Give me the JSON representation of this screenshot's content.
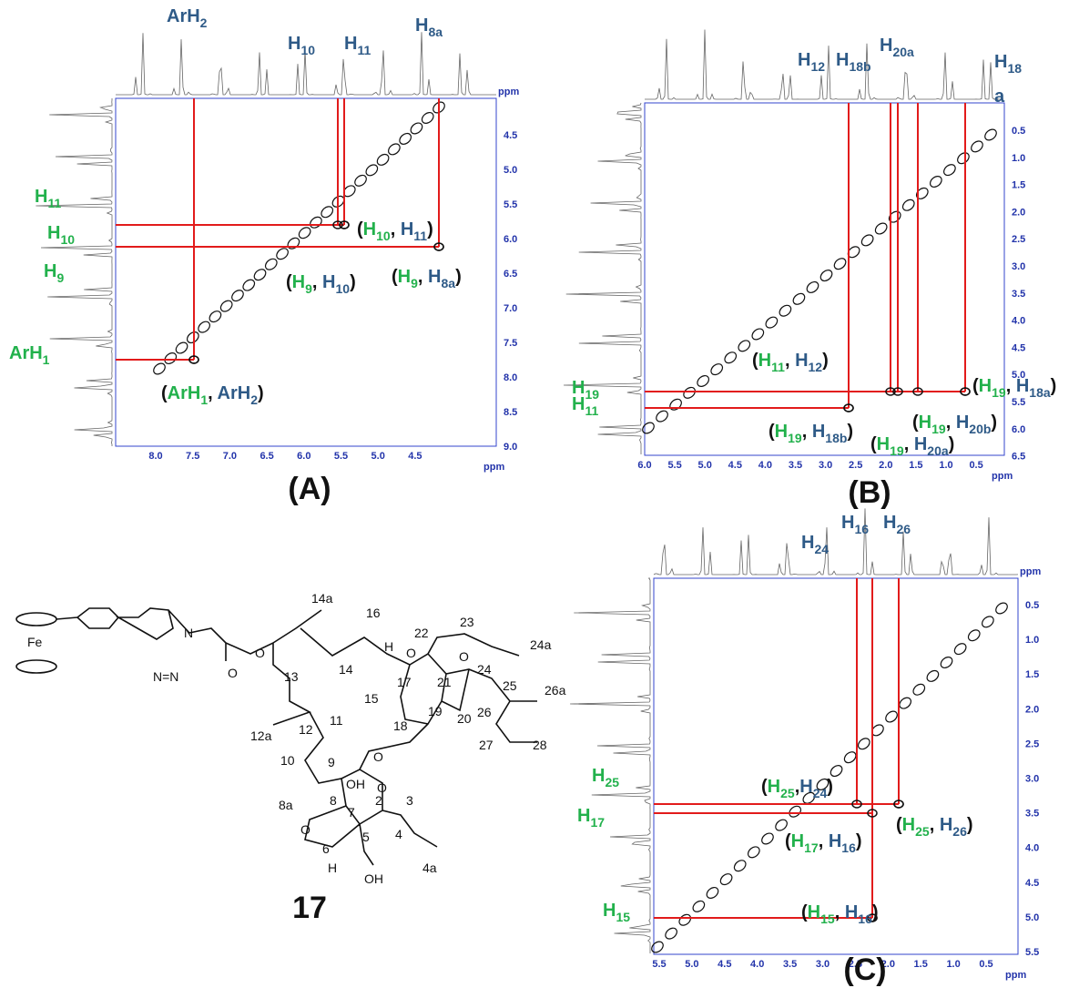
{
  "figure": {
    "compound": "17",
    "panels": [
      {
        "label": "(A)",
        "x_ticks": [
          "8.0",
          "7.5",
          "7.0",
          "6.5",
          "6.0",
          "5.5",
          "5.0",
          "4.5"
        ],
        "y_ticks": [
          "4.5",
          "5.0",
          "5.5",
          "6.0",
          "6.5",
          "7.0",
          "7.5",
          "8.0",
          "8.5",
          "9.0"
        ],
        "x_unit": "ppm",
        "y_unit": "ppm",
        "peak_labels": [
          [
            {
              "t": "ArH",
              "s": "2",
              "color": "#2e5a87"
            }
          ],
          [
            {
              "t": "H",
              "s": "10",
              "color": "#2e5a87"
            }
          ],
          [
            {
              "t": "H",
              "s": "11",
              "color": "#2e5a87"
            }
          ],
          [
            {
              "t": "H",
              "s": "8a",
              "color": "#2e5a87"
            }
          ],
          [
            {
              "t": "H",
              "s": "11",
              "color": "#22b14c"
            }
          ],
          [
            {
              "t": "H",
              "s": "10",
              "color": "#22b14c"
            }
          ],
          [
            {
              "t": "H",
              "s": "9",
              "color": "#22b14c"
            }
          ],
          [
            {
              "t": "ArH",
              "s": "1",
              "color": "#22b14c"
            }
          ]
        ],
        "cross_labels": [
          [
            {
              "t": "(",
              "color": "#111"
            },
            {
              "t": "H",
              "s": "10",
              "color": "#22b14c"
            },
            {
              "t": ", ",
              "color": "#111"
            },
            {
              "t": "H",
              "s": "11",
              "color": "#2e5a87"
            },
            {
              "t": ")",
              "color": "#111"
            }
          ],
          [
            {
              "t": "(",
              "color": "#111"
            },
            {
              "t": "H",
              "s": "9",
              "color": "#22b14c"
            },
            {
              "t": ", ",
              "color": "#111"
            },
            {
              "t": "H",
              "s": "10",
              "color": "#2e5a87"
            },
            {
              "t": ")",
              "color": "#111"
            }
          ],
          [
            {
              "t": "(",
              "color": "#111"
            },
            {
              "t": "H",
              "s": "9",
              "color": "#22b14c"
            },
            {
              "t": ", ",
              "color": "#111"
            },
            {
              "t": "H",
              "s": "8a",
              "color": "#2e5a87"
            },
            {
              "t": ")",
              "color": "#111"
            }
          ],
          [
            {
              "t": "(",
              "color": "#111"
            },
            {
              "t": "ArH",
              "s": "1",
              "color": "#22b14c"
            },
            {
              "t": ", ",
              "color": "#111"
            },
            {
              "t": "ArH",
              "s": "2",
              "color": "#2e5a87"
            },
            {
              "t": ")",
              "color": "#111"
            }
          ]
        ]
      },
      {
        "label": "(B)",
        "x_ticks": [
          "6.0",
          "5.5",
          "5.0",
          "4.5",
          "4.0",
          "3.5",
          "3.0",
          "2.5",
          "2.0",
          "1.5",
          "1.0",
          "0.5"
        ],
        "y_ticks": [
          "0.5",
          "1.0",
          "1.5",
          "2.0",
          "2.5",
          "3.0",
          "3.5",
          "4.0",
          "4.5",
          "5.0",
          "5.5",
          "6.0",
          "6.5"
        ],
        "x_unit": "ppm",
        "peak_labels": [
          [
            {
              "t": "H",
              "s": "12",
              "color": "#2e5a87"
            }
          ],
          [
            {
              "t": "H",
              "s": "18b",
              "color": "#2e5a87"
            }
          ],
          [
            {
              "t": "H",
              "s": "20a",
              "color": "#2e5a87"
            }
          ],
          [
            {
              "t": "H",
              "s": "18",
              "color": "#2e5a87"
            }
          ],
          [
            {
              "t": "a",
              "color": "#2e5a87"
            }
          ],
          [
            {
              "t": "H",
              "s": "19",
              "color": "#22b14c"
            }
          ],
          [
            {
              "t": "H",
              "s": "11",
              "color": "#22b14c"
            }
          ]
        ],
        "cross_labels": [
          [
            {
              "t": "(",
              "color": "#111"
            },
            {
              "t": "H",
              "s": "11",
              "color": "#22b14c"
            },
            {
              "t": ", ",
              "color": "#111"
            },
            {
              "t": "H",
              "s": "12",
              "color": "#2e5a87"
            },
            {
              "t": ")",
              "color": "#111"
            }
          ],
          [
            {
              "t": "(",
              "color": "#111"
            },
            {
              "t": "H",
              "s": "19",
              "color": "#22b14c"
            },
            {
              "t": ", ",
              "color": "#111"
            },
            {
              "t": "H",
              "s": "18b",
              "color": "#2e5a87"
            },
            {
              "t": ")",
              "color": "#111"
            }
          ],
          [
            {
              "t": "(",
              "color": "#111"
            },
            {
              "t": "H",
              "s": "19",
              "color": "#22b14c"
            },
            {
              "t": ", ",
              "color": "#111"
            },
            {
              "t": "H",
              "s": "20a",
              "color": "#2e5a87"
            },
            {
              "t": ")",
              "color": "#111"
            }
          ],
          [
            {
              "t": "(",
              "color": "#111"
            },
            {
              "t": "H",
              "s": "19",
              "color": "#22b14c"
            },
            {
              "t": ", ",
              "color": "#111"
            },
            {
              "t": "H",
              "s": "20b",
              "color": "#2e5a87"
            },
            {
              "t": ")",
              "color": "#111"
            }
          ],
          [
            {
              "t": "(",
              "color": "#111"
            },
            {
              "t": "H",
              "s": "19",
              "color": "#22b14c"
            },
            {
              "t": ", ",
              "color": "#111"
            },
            {
              "t": "H",
              "s": "18a",
              "color": "#2e5a87"
            },
            {
              "t": ")",
              "color": "#111"
            }
          ]
        ]
      },
      {
        "label": "(C)",
        "x_ticks": [
          "5.5",
          "5.0",
          "4.5",
          "4.0",
          "3.5",
          "3.0",
          "2.5",
          "2.0",
          "1.5",
          "1.0",
          "0.5"
        ],
        "y_ticks": [
          "0.5",
          "1.0",
          "1.5",
          "2.0",
          "2.5",
          "3.0",
          "3.5",
          "4.0",
          "4.5",
          "5.0",
          "5.5"
        ],
        "x_unit": "ppm",
        "y_unit": "ppm",
        "peak_labels": [
          [
            {
              "t": "H",
              "s": "24",
              "color": "#2e5a87"
            }
          ],
          [
            {
              "t": "H",
              "s": "16",
              "color": "#2e5a87"
            }
          ],
          [
            {
              "t": "H",
              "s": "26",
              "color": "#2e5a87"
            }
          ],
          [
            {
              "t": "H",
              "s": "25",
              "color": "#22b14c"
            }
          ],
          [
            {
              "t": "H",
              "s": "17",
              "color": "#22b14c"
            }
          ],
          [
            {
              "t": "H",
              "s": "15",
              "color": "#22b14c"
            }
          ]
        ],
        "cross_labels": [
          [
            {
              "t": "(",
              "color": "#111"
            },
            {
              "t": "H",
              "s": "25",
              "color": "#22b14c"
            },
            {
              "t": ",",
              "color": "#111"
            },
            {
              "t": "H",
              "s": "24",
              "color": "#2e5a87"
            },
            {
              "t": ")",
              "color": "#111"
            }
          ],
          [
            {
              "t": "(",
              "color": "#111"
            },
            {
              "t": "H",
              "s": "25",
              "color": "#22b14c"
            },
            {
              "t": ", ",
              "color": "#111"
            },
            {
              "t": "H",
              "s": "26",
              "color": "#2e5a87"
            },
            {
              "t": ")",
              "color": "#111"
            }
          ],
          [
            {
              "t": "(",
              "color": "#111"
            },
            {
              "t": "H",
              "s": "17",
              "color": "#22b14c"
            },
            {
              "t": ", ",
              "color": "#111"
            },
            {
              "t": "H",
              "s": "16",
              "color": "#2e5a87"
            },
            {
              "t": ")",
              "color": "#111"
            }
          ],
          [
            {
              "t": "(",
              "color": "#111"
            },
            {
              "t": "H",
              "s": "15",
              "color": "#22b14c"
            },
            {
              "t": ", ",
              "color": "#111"
            },
            {
              "t": "H",
              "s": "16",
              "color": "#2e5a87"
            },
            {
              "t": ")",
              "color": "#111"
            }
          ]
        ]
      }
    ],
    "structure": {
      "metal": "Fe",
      "atoms": [
        "14a",
        "16",
        "22",
        "23",
        "24a",
        "13",
        "14",
        "15",
        "17",
        "21",
        "24",
        "25",
        "26a",
        "26",
        "12a",
        "12",
        "11",
        "18",
        "19",
        "20",
        "27",
        "28",
        "10",
        "9",
        "8",
        "7",
        "2",
        "3",
        "8a",
        "4",
        "5",
        "6",
        "4a",
        "OH",
        "OH",
        "H",
        "H",
        "O",
        "O",
        "O",
        "O",
        "O",
        "O",
        "O",
        "N",
        "N=N"
      ]
    }
  }
}
